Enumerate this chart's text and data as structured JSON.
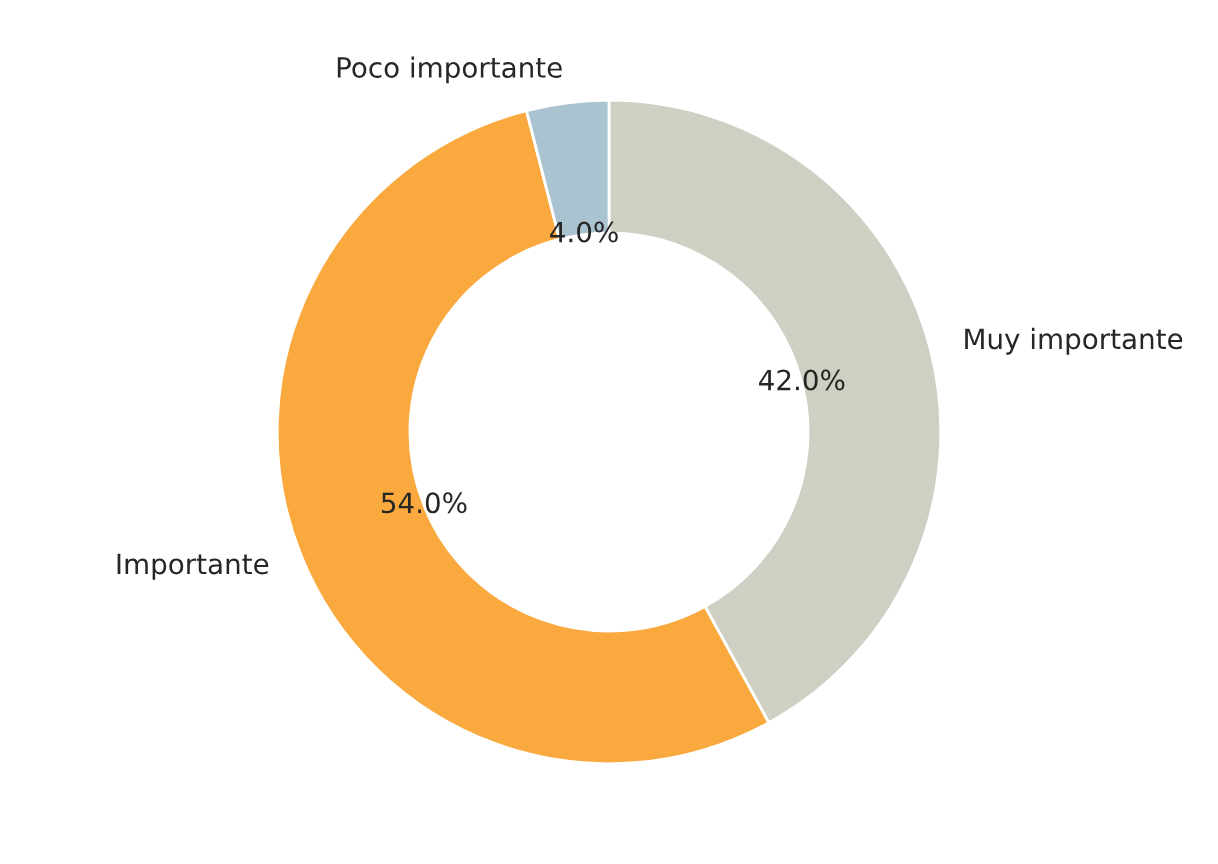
{
  "chart_data": {
    "type": "donut",
    "categories": [
      "Muy importante",
      "Importante",
      "Poco importante"
    ],
    "values": [
      42.0,
      54.0,
      4.0
    ],
    "colors": [
      "#d0cfc4",
      "#f9a93e",
      "#a9c3d0"
    ],
    "value_labels": [
      "42.0%",
      "54.0%",
      "4.0%"
    ]
  }
}
